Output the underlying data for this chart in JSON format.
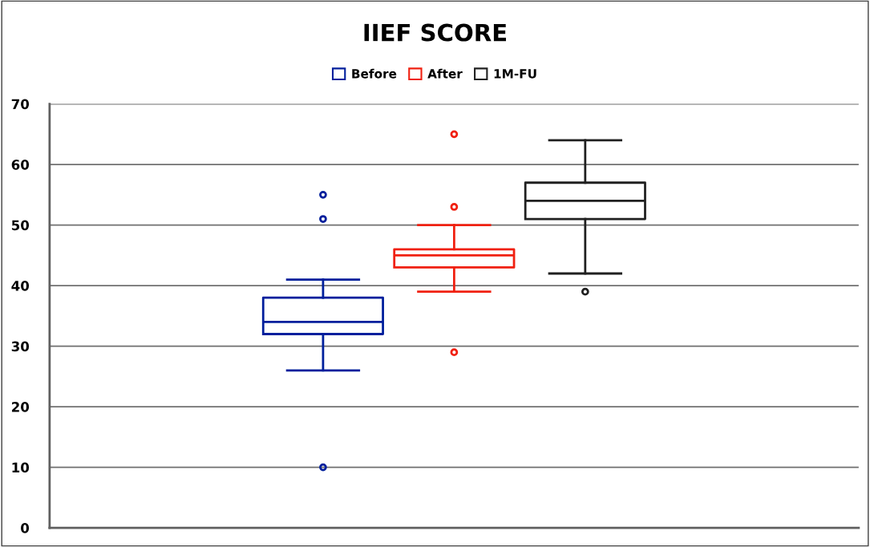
{
  "chart_data": {
    "type": "box",
    "title": "IIEF SCORE",
    "categories": [
      null
    ],
    "series": [
      {
        "name": "Before",
        "color": "#001f9c",
        "boxes": [
          {
            "low": 26,
            "q1": 32,
            "median": 34,
            "q3": 38,
            "high": 41,
            "outliers": [
              10,
              51,
              55
            ]
          }
        ]
      },
      {
        "name": "After",
        "color": "#f02010",
        "boxes": [
          {
            "low": 39,
            "q1": 43,
            "median": 45,
            "q3": 46,
            "high": 50,
            "outliers": [
              29,
              53,
              65
            ]
          }
        ]
      },
      {
        "name": "1M-FU",
        "color": "#202020",
        "boxes": [
          {
            "low": 42,
            "q1": 51,
            "median": 54,
            "q3": 57,
            "high": 64,
            "outliers": [
              39
            ]
          }
        ]
      }
    ],
    "ylim": [
      0,
      70
    ],
    "yticks": [
      0,
      10,
      20,
      30,
      40,
      50,
      60,
      70
    ],
    "grid": "y",
    "legend": "top"
  }
}
